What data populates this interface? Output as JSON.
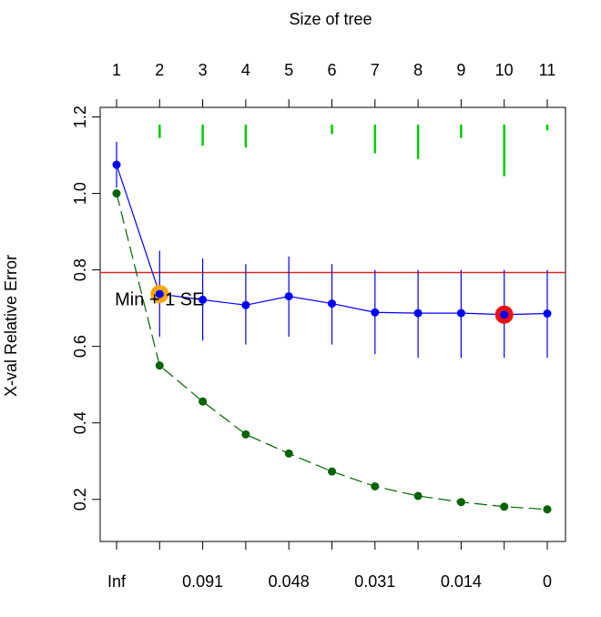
{
  "chart_data": {
    "type": "line",
    "top_axis_title": "Size of tree",
    "top_ticks": [
      "1",
      "2",
      "3",
      "4",
      "5",
      "6",
      "7",
      "8",
      "9",
      "10",
      "11"
    ],
    "bottom_ticks": [
      "Inf",
      "",
      "0.091",
      "",
      "0.048",
      "",
      "0.031",
      "",
      "0.014",
      "",
      "0"
    ],
    "ylabel": "X-val Relative Error",
    "ylim": [
      0.09,
      1.225
    ],
    "y_ticks": [
      0.2,
      0.4,
      0.6,
      0.8,
      1.0,
      1.2
    ],
    "y_tick_labels": [
      "0.2",
      "0.4",
      "0.6",
      "0.8",
      "1.0",
      "1.2"
    ],
    "size_of_tree": [
      1,
      2,
      3,
      4,
      5,
      6,
      7,
      8,
      9,
      10,
      11
    ],
    "series": [
      {
        "color": "#0000ff",
        "line": "solid",
        "values": [
          1.075,
          0.737,
          0.722,
          0.708,
          0.731,
          0.712,
          0.689,
          0.687,
          0.687,
          0.683,
          0.686
        ],
        "err_low": [
          1.015,
          0.625,
          0.615,
          0.605,
          0.625,
          0.605,
          0.58,
          0.57,
          0.57,
          0.57,
          0.57
        ],
        "err_high": [
          1.135,
          0.85,
          0.83,
          0.815,
          0.835,
          0.815,
          0.8,
          0.8,
          0.8,
          0.8,
          0.8
        ]
      },
      {
        "color": "#006400",
        "line": "dashed",
        "values": [
          1.0,
          0.55,
          0.456,
          0.37,
          0.32,
          0.273,
          0.234,
          0.209,
          0.193,
          0.181,
          0.174
        ]
      }
    ],
    "se_bars": [
      {
        "size": 2,
        "low": 1.145,
        "high": 1.18
      },
      {
        "size": 3,
        "low": 1.125,
        "high": 1.18
      },
      {
        "size": 4,
        "low": 1.12,
        "high": 1.18
      },
      {
        "size": 6,
        "low": 1.155,
        "high": 1.18
      },
      {
        "size": 7,
        "low": 1.105,
        "high": 1.18
      },
      {
        "size": 8,
        "low": 1.09,
        "high": 1.18
      },
      {
        "size": 9,
        "low": 1.145,
        "high": 1.18
      },
      {
        "size": 10,
        "low": 1.045,
        "high": 1.18
      },
      {
        "size": 11,
        "low": 1.165,
        "high": 1.18
      }
    ],
    "se_bar_color": "#00cc00",
    "threshold": {
      "value": 0.793,
      "color": "#dd2222"
    },
    "annotation": {
      "text": "Min + 1 SE",
      "color": "#dd2222",
      "at_size": 2,
      "at_value": 0.722
    },
    "highlight_points": [
      {
        "size": 2,
        "value": 0.737,
        "color": "#ffa500"
      },
      {
        "size": 10,
        "value": 0.683,
        "color": "#ee1111"
      }
    ]
  }
}
